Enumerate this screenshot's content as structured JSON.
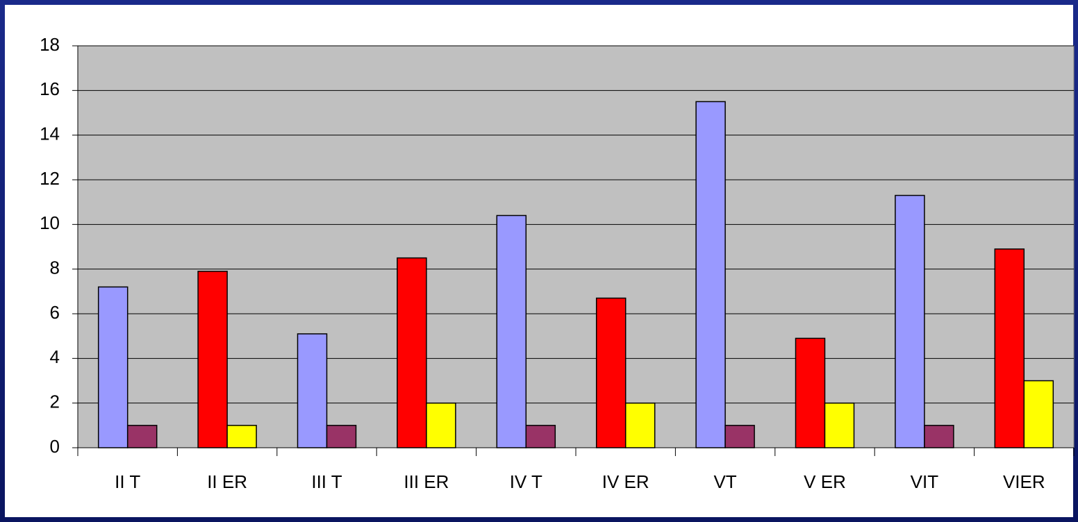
{
  "chart_data": {
    "type": "bar",
    "categories": [
      "II T",
      "II ER",
      "III T",
      "III ER",
      "IV T",
      "IV ER",
      "VT",
      "V ER",
      "VIT",
      "VIER"
    ],
    "series": [
      {
        "colors": [
          "#9999ff",
          "#ff0000",
          "#9999ff",
          "#ff0000",
          "#9999ff",
          "#ff0000",
          "#9999ff",
          "#ff0000",
          "#9999ff",
          "#ff0000"
        ],
        "values": [
          7.2,
          7.9,
          5.1,
          8.5,
          10.4,
          6.7,
          15.5,
          4.9,
          11.3,
          8.9
        ]
      },
      {
        "colors": [
          "#993366",
          "#ffff00",
          "#993366",
          "#ffff00",
          "#993366",
          "#ffff00",
          "#993366",
          "#ffff00",
          "#993366",
          "#ffff00"
        ],
        "values": [
          1,
          1,
          1,
          2,
          1,
          2,
          1,
          2,
          1,
          3
        ]
      }
    ],
    "ylim": [
      0,
      18
    ],
    "yticks": [
      0,
      2,
      4,
      6,
      8,
      10,
      12,
      14,
      16,
      18
    ],
    "grid": true,
    "plot_background": "#c0c0c0"
  }
}
